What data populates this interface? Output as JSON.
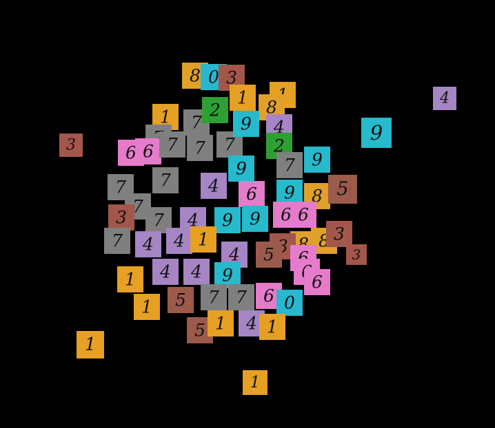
{
  "tiles": [
    {
      "label": "8"
    },
    {
      "label": "0"
    },
    {
      "label": "3"
    },
    {
      "label": "1"
    },
    {
      "label": "1"
    },
    {
      "label": "8"
    },
    {
      "label": "1"
    },
    {
      "label": "7"
    },
    {
      "label": "7"
    },
    {
      "label": "6"
    },
    {
      "label": "6"
    },
    {
      "label": "7"
    },
    {
      "label": "7"
    },
    {
      "label": "7"
    },
    {
      "label": "9"
    },
    {
      "label": "4"
    },
    {
      "label": "2"
    },
    {
      "label": "2"
    },
    {
      "label": "9"
    },
    {
      "label": "7"
    },
    {
      "label": "9"
    },
    {
      "label": "7"
    },
    {
      "label": "7"
    },
    {
      "label": "4"
    },
    {
      "label": "9"
    },
    {
      "label": "8"
    },
    {
      "label": "6"
    },
    {
      "label": "7"
    },
    {
      "label": "3"
    },
    {
      "label": "7"
    },
    {
      "label": "4"
    },
    {
      "label": "9"
    },
    {
      "label": "9"
    },
    {
      "label": "6"
    },
    {
      "label": "6"
    },
    {
      "label": "7"
    },
    {
      "label": "4"
    },
    {
      "label": "4"
    },
    {
      "label": "1"
    },
    {
      "label": "4"
    },
    {
      "label": "8"
    },
    {
      "label": "8"
    },
    {
      "label": "3"
    },
    {
      "label": "3"
    },
    {
      "label": "5"
    },
    {
      "label": "4"
    },
    {
      "label": "4"
    },
    {
      "label": "9"
    },
    {
      "label": "6"
    },
    {
      "label": "6"
    },
    {
      "label": "6"
    },
    {
      "label": "6"
    },
    {
      "label": "0"
    },
    {
      "label": "5"
    },
    {
      "label": "7"
    },
    {
      "label": "7"
    },
    {
      "label": "5"
    },
    {
      "label": "1"
    },
    {
      "label": "4"
    },
    {
      "label": "1"
    },
    {
      "label": "4"
    },
    {
      "label": "9"
    },
    {
      "label": "3"
    },
    {
      "label": "1"
    },
    {
      "label": "1"
    },
    {
      "label": "3"
    },
    {
      "label": "5"
    },
    {
      "label": "1"
    },
    {
      "label": "1"
    }
  ]
}
